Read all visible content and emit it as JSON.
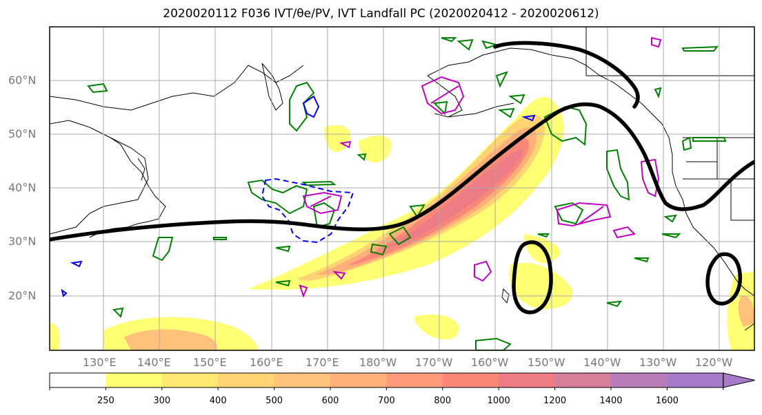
{
  "title": "2020020112 F036 IVT/θe/PV, IVT Landfall PC (2020020412 - 2020020612)",
  "lat_labels": [
    "60°N",
    "50°N",
    "40°N",
    "30°N",
    "20°N"
  ],
  "lon_labels": [
    "130°E",
    "140°E",
    "150°E",
    "160°E",
    "170°E",
    "180°W",
    "170°W",
    "160°W",
    "150°W",
    "140°W",
    "130°W",
    "120°W"
  ],
  "colorbar": {
    "ticks": [
      "250",
      "300",
      "400",
      "500",
      "600",
      "700",
      "800",
      "1000",
      "1200",
      "1400",
      "1600"
    ],
    "colors": [
      "#ffffff",
      "#ffff74",
      "#ffe872",
      "#ffd474",
      "#ffc27a",
      "#ffb07a",
      "#ff9b7a",
      "#fa8878",
      "#ec7c86",
      "#d77e98",
      "#b87db8",
      "#a57bc9"
    ]
  },
  "colors": {
    "ivt_contour_black": "#000000",
    "theta_e_green": "#008000",
    "pv_magenta": "#c000c0",
    "negative_blue": "#0000ee"
  }
}
